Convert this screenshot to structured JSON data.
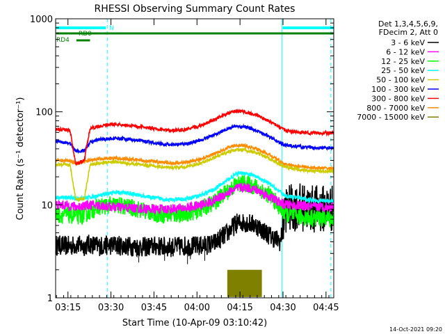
{
  "chart_data": {
    "type": "line",
    "title": "RHESSI Observing Summary Count Rates",
    "xlabel": "Start Time (10-Apr-09 03:10:42)",
    "ylabel": "Count Rate (s⁻¹ detector⁻¹)",
    "yscale": "log",
    "ylim": [
      1,
      1000
    ],
    "y_ticks": [
      "1",
      "10",
      "100",
      "1000"
    ],
    "xlim_minutes": [
      0,
      97
    ],
    "x_ticks": [
      {
        "t": 4.3,
        "label": "03:15"
      },
      {
        "t": 19.3,
        "label": "03:30"
      },
      {
        "t": 34.3,
        "label": "03:45"
      },
      {
        "t": 49.3,
        "label": "04:00"
      },
      {
        "t": 64.3,
        "label": "04:15"
      },
      {
        "t": 79.3,
        "label": "04:30"
      },
      {
        "t": 94.3,
        "label": "04:45"
      }
    ],
    "legend": {
      "placement": "right",
      "header": [
        "Det 1,3,4,5,6,9,",
        "FDecim 2, Att 0"
      ],
      "entries": [
        {
          "name": "3 - 6 keV",
          "color": "#000000"
        },
        {
          "name": "6 - 12 keV",
          "color": "#ff00ff"
        },
        {
          "name": "12 - 25 keV",
          "color": "#00ff00"
        },
        {
          "name": "25 - 50 keV",
          "color": "#00ffff"
        },
        {
          "name": "50 - 100 keV",
          "color": "#cccc00"
        },
        {
          "name": "100 - 300 keV",
          "color": "#0000ff"
        },
        {
          "name": "300 - 800 keV",
          "color": "#ff0000"
        },
        {
          "name": "800 - 7000 keV",
          "color": "#ff8c00"
        },
        {
          "name": "7000 - 15000 keV",
          "color": "#808000"
        }
      ]
    },
    "x": [
      0,
      5,
      7,
      10,
      12,
      15,
      20,
      25,
      30,
      35,
      40,
      45,
      50,
      55,
      60,
      63,
      66,
      70,
      75,
      78.5,
      80,
      85,
      90,
      97
    ],
    "series": [
      {
        "name": "3 - 6 keV",
        "color": "#000000",
        "noise": 0.25,
        "values": [
          3.7,
          3.6,
          3.7,
          3.6,
          3.8,
          3.6,
          3.7,
          3.6,
          3.5,
          3.6,
          3.5,
          3.6,
          3.6,
          3.8,
          5.0,
          6.3,
          6.5,
          6.0,
          4.6,
          4.0,
          9,
          9.5,
          9.0,
          9.2
        ]
      },
      {
        "name": "6 - 12 keV",
        "color": "#ff00ff",
        "noise": 0.12,
        "values": [
          10.0,
          9.8,
          9.5,
          9.8,
          10.0,
          9.8,
          9.5,
          9.3,
          9.1,
          9.0,
          9.0,
          9.2,
          9.8,
          11.0,
          13.5,
          15.0,
          15.5,
          14.5,
          12.0,
          10.5,
          10.0,
          9.8,
          9.5,
          9.5
        ]
      },
      {
        "name": "12 - 25 keV",
        "color": "#00ff00",
        "noise": 0.22,
        "values": [
          7.8,
          7.8,
          7.5,
          7.8,
          8.5,
          9.5,
          10.0,
          9.5,
          8.8,
          8.0,
          7.8,
          8.0,
          8.8,
          10.5,
          14.0,
          16.5,
          17.0,
          15.5,
          12.5,
          9.0,
          8.0,
          7.5,
          7.2,
          7.2
        ]
      },
      {
        "name": "25 - 50 keV",
        "color": "#00ffff",
        "noise": 0.05,
        "values": [
          12.0,
          12.0,
          11.5,
          11.8,
          12.0,
          12.5,
          13.5,
          13.5,
          12.5,
          11.8,
          11.3,
          11.5,
          12.5,
          14.5,
          18.5,
          21.5,
          22.0,
          20.0,
          16.5,
          13.5,
          12.5,
          11.8,
          11.2,
          11.0
        ]
      },
      {
        "name": "50 - 100 keV",
        "color": "#cccc00",
        "noise": 0.04,
        "values": [
          27.0,
          27.0,
          11.5,
          11.5,
          27.0,
          28.0,
          29.0,
          28.0,
          27.0,
          26.0,
          25.0,
          25.5,
          27.5,
          32.0,
          37.0,
          39.0,
          39.0,
          36.0,
          31.0,
          27.0,
          25.5,
          24.0,
          23.0,
          23.0
        ]
      },
      {
        "name": "100 - 300 keV",
        "color": "#0000ff",
        "noise": 0.04,
        "values": [
          48.0,
          46.0,
          38.0,
          38.0,
          47.0,
          50.0,
          52.0,
          51.0,
          49.0,
          46.0,
          44.0,
          45.0,
          49.0,
          56.0,
          66.0,
          70.0,
          69.0,
          63.0,
          53.0,
          46.0,
          44.0,
          42.0,
          41.0,
          41.0
        ]
      },
      {
        "name": "300 - 800 keV",
        "color": "#ff0000",
        "noise": 0.04,
        "values": [
          65.0,
          64.0,
          27.0,
          30.0,
          66.0,
          70.0,
          74.0,
          72.0,
          69.0,
          65.0,
          63.0,
          64.0,
          70.0,
          82.0,
          96.0,
          102.0,
          100.0,
          92.0,
          78.0,
          67.0,
          63.0,
          60.0,
          59.0,
          59.0
        ]
      },
      {
        "name": "800 - 7000 keV",
        "color": "#ff8c00",
        "noise": 0.04,
        "values": [
          30.0,
          30.0,
          28.0,
          29.0,
          30.0,
          31.0,
          32.0,
          31.0,
          30.0,
          29.0,
          28.0,
          28.5,
          30.5,
          35.0,
          41.0,
          44.0,
          43.0,
          40.0,
          34.0,
          29.0,
          27.0,
          26.0,
          25.0,
          24.5
        ]
      }
    ],
    "spike_series": {
      "name": "7000 - 15000 keV",
      "color": "#808000",
      "t_range": [
        60,
        72
      ],
      "top": 2.0,
      "bottom": 1.0
    },
    "status_bars": [
      {
        "label": "N",
        "color": "#00ffff",
        "segments": [
          [
            0,
            17.5
          ],
          [
            79,
            97
          ]
        ]
      },
      {
        "label": "RD0",
        "color": "#008000",
        "segments": [
          [
            0,
            97
          ]
        ]
      },
      {
        "label": "RD4",
        "color": "#008000",
        "segments": [
          [
            7,
            12
          ]
        ]
      }
    ],
    "vlines": [
      {
        "t": 0,
        "color": "#00ffff",
        "style": "solid"
      },
      {
        "t": 18.0,
        "color": "#00ffff",
        "style": "dashed"
      },
      {
        "t": 79.0,
        "color": "#00ffff",
        "style": "solid"
      },
      {
        "t": 96.0,
        "color": "#00ffff",
        "style": "dashed"
      }
    ],
    "footer_date": "14-Oct-2021 09:20"
  }
}
